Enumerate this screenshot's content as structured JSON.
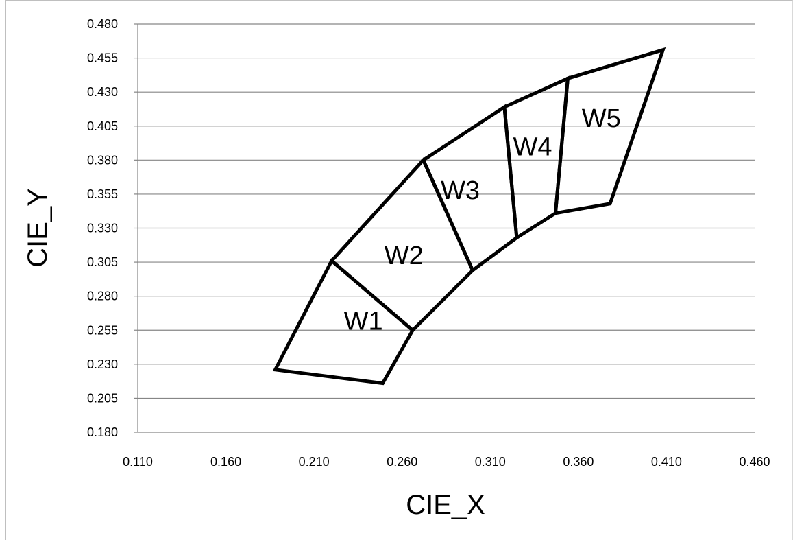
{
  "chart_data": {
    "type": "scatter",
    "xlabel": "CIE_X",
    "ylabel": "CIE_Y",
    "xlim": [
      0.11,
      0.46
    ],
    "ylim": [
      0.18,
      0.48
    ],
    "x_ticks": [
      "0.110",
      "0.160",
      "0.210",
      "0.260",
      "0.310",
      "0.360",
      "0.410",
      "0.460"
    ],
    "y_ticks": [
      "0.180",
      "0.205",
      "0.230",
      "0.255",
      "0.280",
      "0.305",
      "0.330",
      "0.355",
      "0.380",
      "0.405",
      "0.430",
      "0.455",
      "0.480"
    ],
    "grid": "horizontal",
    "legend": "none",
    "line_color": "#000000",
    "regions": [
      {
        "name": "W1",
        "vertices": [
          [
            0.188,
            0.226
          ],
          [
            0.249,
            0.216
          ],
          [
            0.266,
            0.255
          ],
          [
            0.22,
            0.306
          ]
        ]
      },
      {
        "name": "W2",
        "vertices": [
          [
            0.22,
            0.306
          ],
          [
            0.266,
            0.255
          ],
          [
            0.3,
            0.299
          ],
          [
            0.272,
            0.38
          ]
        ]
      },
      {
        "name": "W3",
        "vertices": [
          [
            0.272,
            0.38
          ],
          [
            0.3,
            0.299
          ],
          [
            0.325,
            0.323
          ],
          [
            0.318,
            0.419
          ]
        ]
      },
      {
        "name": "W4",
        "vertices": [
          [
            0.318,
            0.419
          ],
          [
            0.325,
            0.323
          ],
          [
            0.347,
            0.341
          ],
          [
            0.354,
            0.44
          ]
        ]
      },
      {
        "name": "W5",
        "vertices": [
          [
            0.354,
            0.44
          ],
          [
            0.347,
            0.341
          ],
          [
            0.378,
            0.348
          ],
          [
            0.408,
            0.461
          ]
        ]
      }
    ],
    "region_labels": [
      {
        "text": "W1",
        "x": 0.238,
        "y": 0.262
      },
      {
        "text": "W2",
        "x": 0.261,
        "y": 0.31
      },
      {
        "text": "W3",
        "x": 0.293,
        "y": 0.358
      },
      {
        "text": "W4",
        "x": 0.334,
        "y": 0.39
      },
      {
        "text": "W5",
        "x": 0.373,
        "y": 0.411
      }
    ]
  }
}
